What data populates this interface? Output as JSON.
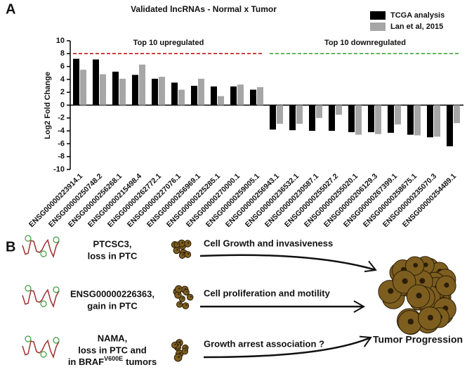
{
  "panel_labels": [
    "A",
    "B"
  ],
  "chart_data": {
    "type": "bar",
    "title": "Validated lncRNAs - Normal x Tumor",
    "y_label": "Log2 Fold Change",
    "categories": [
      "ENSG00000223914.1",
      "ENSG00000250748.2",
      "ENSG00000256268.1",
      "ENSG00000215498.4",
      "ENSG00000262772.1",
      "ENSG00000227076.1",
      "ENSG00000256969.1",
      "ENSG00000225285.1",
      "ENSG00000270000.1",
      "ENSG00000259005.1",
      "ENSG00000256943.1",
      "ENSG00000236532.1",
      "ENSG00000230587.1",
      "ENSG00000255027.2",
      "ENSG00000255020.1",
      "ENSG00000206129.3",
      "ENSG00000267399.1",
      "ENSG00000258675.1",
      "ENSG00000235070.3",
      "ENSG00000254489.1"
    ],
    "series": [
      {
        "name": "TCGA analysis",
        "color": "#000000",
        "values": [
          7.2,
          7.1,
          5.2,
          4.7,
          4.1,
          3.5,
          3.0,
          2.9,
          2.9,
          2.4,
          -3.8,
          -3.9,
          -4.0,
          -4.0,
          -4.2,
          -4.2,
          -4.3,
          -4.6,
          -5.0,
          -6.4
        ]
      },
      {
        "name": "Lan et al,  2015",
        "color": "#a6a6a6",
        "values": [
          5.5,
          4.8,
          4.1,
          6.3,
          4.4,
          2.4,
          4.1,
          1.4,
          3.2,
          2.8,
          -2.9,
          -2.9,
          -2.0,
          -1.5,
          -4.6,
          -4.5,
          -3.0,
          -4.7,
          -4.9,
          -2.8
        ]
      }
    ],
    "ylim": [
      -10,
      10
    ],
    "yticks": [
      -10,
      -8,
      -6,
      -4,
      -2,
      0,
      2,
      4,
      6,
      8,
      10
    ],
    "annotations": [
      {
        "text": "Top 10 upregulated",
        "y": 8,
        "color": "#c00000"
      },
      {
        "text": "Top 10 downregulated",
        "y": 8,
        "color": "#2ca02c"
      }
    ]
  },
  "panel_b": {
    "items": [
      {
        "lines": [
          "PTCSC3,",
          "loss in PTC"
        ],
        "effect": "Cell Growth and invasiveness"
      },
      {
        "lines": [
          "ENSG00000226363,",
          "gain in PTC"
        ],
        "effect": "Cell proliferation and motility"
      },
      {
        "lines": [
          "NAMA,",
          "loss in PTC and"
        ],
        "last": {
          "pre": "in BRAF",
          "sup": "V600E",
          "post": "tumors"
        },
        "effect": "Growth arrest association ?"
      }
    ],
    "outcome": "Tumor Progression"
  }
}
